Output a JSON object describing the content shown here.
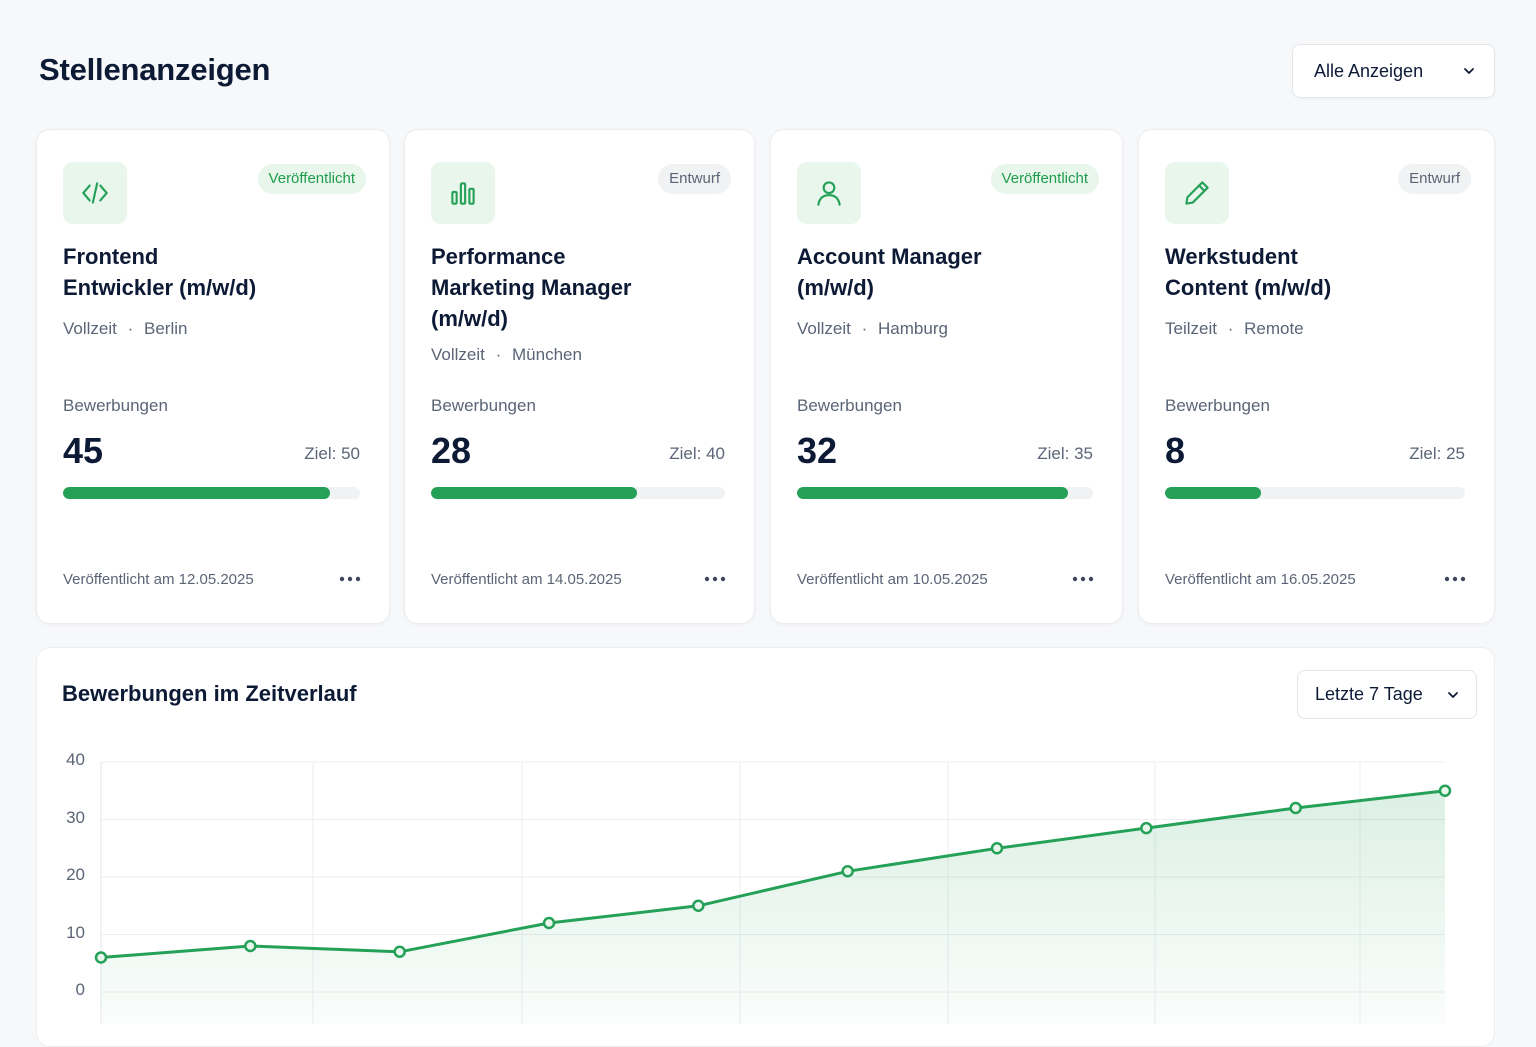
{
  "header": {
    "title": "Stellenanzeigen",
    "filter_value": "Alle Anzeigen"
  },
  "colors": {
    "accent": "#24a157",
    "accent_light": "#e8f6ec",
    "text_primary": "#0d1a36",
    "text_secondary": "#5b6577"
  },
  "jobs": [
    {
      "icon": "code-icon",
      "status": "Veröffentlicht",
      "status_type": "published",
      "title_line1": "Frontend",
      "title_line2": "Entwickler (m/w/d)",
      "title_line3": "",
      "type": "Vollzeit",
      "location": "Berlin",
      "applications_label": "Bewerbungen",
      "applications": "45",
      "goal": "Ziel: 50",
      "progress": 0.9,
      "published": "Veröffentlicht am 12.05.2025"
    },
    {
      "icon": "bar-chart-icon",
      "status": "Entwurf",
      "status_type": "draft",
      "title_line1": "Performance",
      "title_line2": "Marketing Manager",
      "title_line3": "(m/w/d)",
      "type": "Vollzeit",
      "location": "München",
      "applications_label": "Bewerbungen",
      "applications": "28",
      "goal": "Ziel: 40",
      "progress": 0.7,
      "published": "Veröffentlicht am 14.05.2025"
    },
    {
      "icon": "user-icon",
      "status": "Veröffentlicht",
      "status_type": "published",
      "title_line1": "Account Manager",
      "title_line2": "(m/w/d)",
      "title_line3": "",
      "type": "Vollzeit",
      "location": "Hamburg",
      "applications_label": "Bewerbungen",
      "applications": "32",
      "goal": "Ziel: 35",
      "progress": 0.914,
      "published": "Veröffentlicht am 10.05.2025"
    },
    {
      "icon": "pencil-icon",
      "status": "Entwurf",
      "status_type": "draft",
      "title_line1": "Werkstudent",
      "title_line2": "Content (m/w/d)",
      "title_line3": "",
      "type": "Teilzeit",
      "location": "Remote",
      "applications_label": "Bewerbungen",
      "applications": "8",
      "goal": "Ziel: 25",
      "progress": 0.32,
      "published": "Veröffentlicht am 16.05.2025"
    }
  ],
  "chart_section": {
    "title": "Bewerbungen im Zeitverlauf",
    "range_value": "Letzte 7 Tage"
  },
  "chart_data": {
    "type": "area",
    "title": "Bewerbungen im Zeitverlauf",
    "y_ticks": [
      "40",
      "30",
      "20",
      "10",
      "0"
    ],
    "ylim": [
      0,
      40
    ],
    "grid": true,
    "x": [
      0,
      1,
      2,
      3,
      4,
      5,
      6,
      7,
      8,
      9
    ],
    "series": [
      {
        "values": [
          6,
          8,
          7,
          12,
          15,
          21,
          25,
          28.5,
          32,
          35
        ]
      }
    ]
  }
}
